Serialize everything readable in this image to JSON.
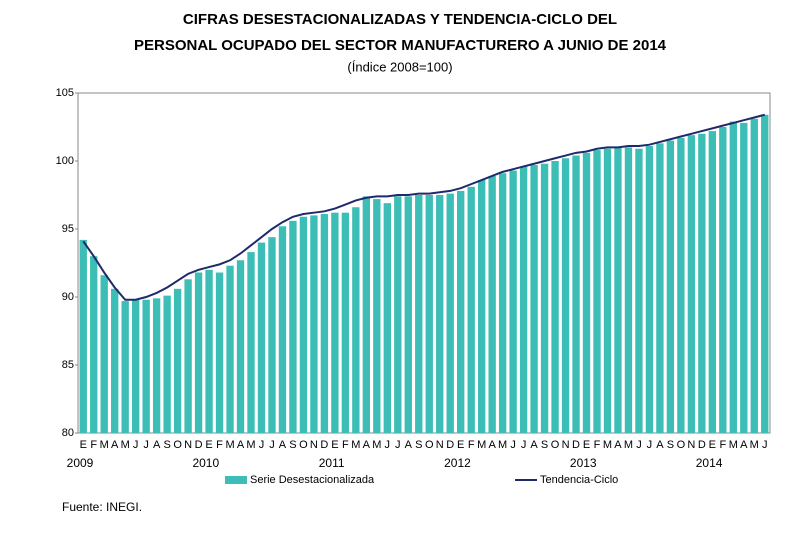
{
  "chart_data": {
    "type": "bar_line",
    "title": [
      "CIFRAS DESESTACIONALIZADAS Y TENDENCIA-CICLO DEL",
      "PERSONAL OCUPADO DEL SECTOR MANUFACTURERO A JUNIO DE 2014"
    ],
    "subtitle": "(Índice 2008=100)",
    "categories": [
      "E",
      "F",
      "M",
      "A",
      "M",
      "J",
      "J",
      "A",
      "S",
      "O",
      "N",
      "D",
      "E",
      "F",
      "M",
      "A",
      "M",
      "J",
      "J",
      "A",
      "S",
      "O",
      "N",
      "D",
      "E",
      "F",
      "M",
      "A",
      "M",
      "J",
      "J",
      "A",
      "S",
      "O",
      "N",
      "D",
      "E",
      "F",
      "M",
      "A",
      "M",
      "J",
      "J",
      "A",
      "S",
      "O",
      "N",
      "D",
      "E",
      "F",
      "M",
      "A",
      "M",
      "J",
      "J",
      "A",
      "S",
      "O",
      "N",
      "D",
      "E",
      "F",
      "M",
      "A",
      "M",
      "J"
    ],
    "years": [
      "2009",
      "2010",
      "2011",
      "2012",
      "2013",
      "2014"
    ],
    "series": [
      {
        "name": "Serie Desestacionalizada",
        "color": "#3cbdb5",
        "kind": "bar",
        "values": [
          94.2,
          93.0,
          91.6,
          90.6,
          89.7,
          89.8,
          89.8,
          89.9,
          90.1,
          90.6,
          91.3,
          91.8,
          92.0,
          91.8,
          92.3,
          92.7,
          93.3,
          94.0,
          94.4,
          95.2,
          95.6,
          95.9,
          96.0,
          96.1,
          96.2,
          96.2,
          96.6,
          97.4,
          97.2,
          96.9,
          97.4,
          97.4,
          97.5,
          97.5,
          97.5,
          97.6,
          97.8,
          98.1,
          98.6,
          98.9,
          99.1,
          99.3,
          99.6,
          99.7,
          99.8,
          100.0,
          100.2,
          100.4,
          100.6,
          100.8,
          100.9,
          101.0,
          101.0,
          100.9,
          101.1,
          101.3,
          101.5,
          101.7,
          101.9,
          102.0,
          102.2,
          102.5,
          102.9,
          102.8,
          103.1,
          103.4
        ]
      },
      {
        "name": "Tendencia-Ciclo",
        "color": "#1f2a6b",
        "kind": "line",
        "values": [
          94.1,
          93.0,
          91.8,
          90.7,
          89.8,
          89.8,
          90.0,
          90.3,
          90.7,
          91.2,
          91.7,
          92.0,
          92.2,
          92.4,
          92.7,
          93.2,
          93.8,
          94.4,
          95.0,
          95.5,
          95.9,
          96.1,
          96.2,
          96.3,
          96.5,
          96.8,
          97.1,
          97.3,
          97.4,
          97.4,
          97.5,
          97.5,
          97.6,
          97.6,
          97.7,
          97.8,
          98.0,
          98.3,
          98.6,
          98.9,
          99.2,
          99.4,
          99.6,
          99.8,
          100.0,
          100.2,
          100.4,
          100.6,
          100.7,
          100.9,
          101.0,
          101.0,
          101.1,
          101.1,
          101.2,
          101.4,
          101.6,
          101.8,
          102.0,
          102.2,
          102.4,
          102.6,
          102.8,
          103.0,
          103.2,
          103.4
        ]
      }
    ],
    "ylim": [
      80,
      105
    ],
    "yticks": [
      80,
      85,
      90,
      95,
      100,
      105
    ],
    "source": "Fuente: INEGI."
  }
}
